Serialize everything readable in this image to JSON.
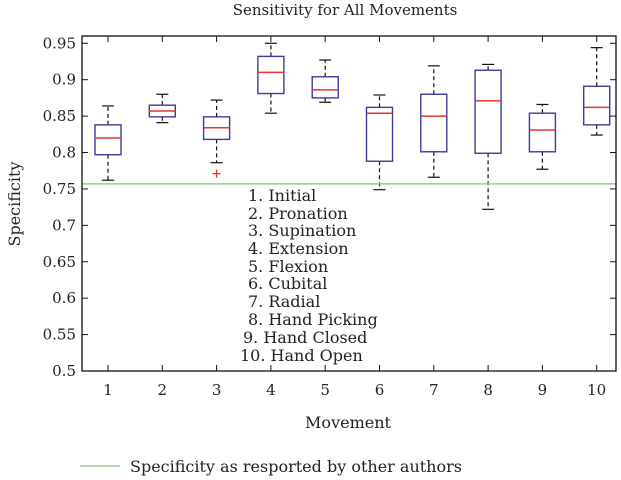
{
  "chart_data": {
    "type": "box",
    "title": "Sensitivity for All Movements",
    "xlabel": "Movement",
    "ylabel": "Specificity",
    "categories": [
      "1",
      "2",
      "3",
      "4",
      "5",
      "6",
      "7",
      "8",
      "9",
      "10"
    ],
    "ylim": [
      0.5,
      0.96
    ],
    "yticks": [
      "0.5",
      "0.55",
      "0.6",
      "0.65",
      "0.7",
      "0.75",
      "0.8",
      "0.85",
      "0.9",
      "0.95"
    ],
    "boxes": [
      {
        "min": 0.762,
        "q1": 0.797,
        "median": 0.82,
        "q3": 0.838,
        "max": 0.864,
        "outliers": []
      },
      {
        "min": 0.841,
        "q1": 0.849,
        "median": 0.857,
        "q3": 0.865,
        "max": 0.88,
        "outliers": []
      },
      {
        "min": 0.786,
        "q1": 0.818,
        "median": 0.834,
        "q3": 0.849,
        "max": 0.872,
        "outliers": [
          0.771
        ]
      },
      {
        "min": 0.854,
        "q1": 0.881,
        "median": 0.91,
        "q3": 0.932,
        "max": 0.95,
        "outliers": []
      },
      {
        "min": 0.869,
        "q1": 0.875,
        "median": 0.886,
        "q3": 0.904,
        "max": 0.927,
        "outliers": []
      },
      {
        "min": 0.749,
        "q1": 0.788,
        "median": 0.854,
        "q3": 0.862,
        "max": 0.879,
        "outliers": []
      },
      {
        "min": 0.766,
        "q1": 0.801,
        "median": 0.85,
        "q3": 0.88,
        "max": 0.919,
        "outliers": []
      },
      {
        "min": 0.722,
        "q1": 0.799,
        "median": 0.871,
        "q3": 0.913,
        "max": 0.921,
        "outliers": []
      },
      {
        "min": 0.777,
        "q1": 0.801,
        "median": 0.831,
        "q3": 0.854,
        "max": 0.866,
        "outliers": []
      },
      {
        "min": 0.824,
        "q1": 0.838,
        "median": 0.862,
        "q3": 0.891,
        "max": 0.944,
        "outliers": []
      }
    ],
    "reference_line": {
      "y": 0.757,
      "label": "Specificity as resported by other authors"
    },
    "annotation_lines": [
      "1. Initial",
      "2. Pronation",
      "3. Supination",
      "4. Extension",
      "5. Flexion",
      "6. Cubital",
      "7. Radial",
      "8. Hand Picking",
      "9. Hand Closed",
      "10. Hand Open"
    ],
    "legend_position": "bottom-left",
    "grid": false,
    "colors": {
      "box": "#3b3b9e",
      "median": "#e8322a",
      "whisker": "#111111",
      "outlier": "#e8322a",
      "reference": "#8fd18f",
      "axis": "#111111"
    }
  }
}
